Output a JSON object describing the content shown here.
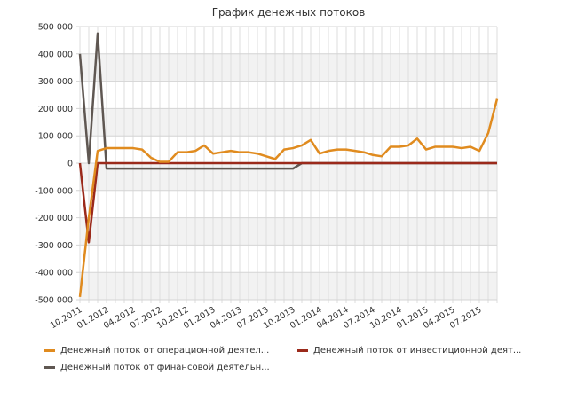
{
  "chart_data": {
    "type": "line",
    "title": "График денежных потоков",
    "xlabel": "",
    "ylabel": "",
    "ylim": [
      -500000,
      500000
    ],
    "y_ticks": [
      500000,
      400000,
      300000,
      200000,
      100000,
      0,
      -100000,
      -200000,
      -300000,
      -400000,
      -500000
    ],
    "y_tick_labels": [
      "500 000",
      "400 000",
      "300 000",
      "200 000",
      "100 000",
      "0",
      "-100 000",
      "-200 000",
      "-300 000",
      "-400 000",
      "-500 000"
    ],
    "grid": true,
    "legend_position": "bottom",
    "categories": [
      "10.2011",
      "11.2011",
      "12.2011",
      "01.2012",
      "02.2012",
      "03.2012",
      "04.2012",
      "05.2012",
      "06.2012",
      "07.2012",
      "08.2012",
      "09.2012",
      "10.2012",
      "11.2012",
      "12.2012",
      "01.2013",
      "02.2013",
      "03.2013",
      "04.2013",
      "05.2013",
      "06.2013",
      "07.2013",
      "08.2013",
      "09.2013",
      "10.2013",
      "11.2013",
      "12.2013",
      "01.2014",
      "02.2014",
      "03.2014",
      "04.2014",
      "05.2014",
      "06.2014",
      "07.2014",
      "08.2014",
      "09.2014",
      "10.2014",
      "11.2014",
      "12.2014",
      "01.2015",
      "02.2015",
      "03.2015",
      "04.2015",
      "05.2015",
      "06.2015",
      "07.2015",
      "08.2015",
      "09.2015"
    ],
    "x_tick_labels": [
      "10.2011",
      "01.2012",
      "04.2012",
      "07.2012",
      "10.2012",
      "01.2013",
      "04.2013",
      "07.2013",
      "10.2013",
      "01.2014",
      "04.2014",
      "07.2014",
      "10.2014",
      "01.2015",
      "04.2015",
      "07.2015"
    ],
    "series": [
      {
        "name": "Денежный поток от операционной деятел...",
        "color": "#E08B1F",
        "values": [
          -490000,
          -200000,
          45000,
          55000,
          55000,
          55000,
          55000,
          50000,
          20000,
          5000,
          5000,
          40000,
          40000,
          45000,
          65000,
          35000,
          40000,
          45000,
          40000,
          40000,
          35000,
          25000,
          15000,
          50000,
          55000,
          65000,
          85000,
          35000,
          45000,
          50000,
          50000,
          45000,
          40000,
          30000,
          25000,
          60000,
          60000,
          65000,
          90000,
          50000,
          60000,
          60000,
          60000,
          55000,
          60000,
          45000,
          110000,
          235000
        ]
      },
      {
        "name": "Денежный поток от инвестиционной деят...",
        "color": "#9B2A1B",
        "values": [
          0,
          -290000,
          0,
          0,
          0,
          0,
          0,
          0,
          0,
          0,
          0,
          0,
          0,
          0,
          0,
          0,
          0,
          0,
          0,
          0,
          0,
          0,
          0,
          0,
          0,
          0,
          0,
          0,
          0,
          0,
          0,
          0,
          0,
          0,
          0,
          0,
          0,
          0,
          0,
          0,
          0,
          0,
          0,
          0,
          0,
          0,
          0,
          0
        ]
      },
      {
        "name": "Денежный поток от финансовой деятельн...",
        "color": "#5F5752",
        "values": [
          400000,
          0,
          475000,
          -20000,
          -20000,
          -20000,
          -20000,
          -20000,
          -20000,
          -20000,
          -20000,
          -20000,
          -20000,
          -20000,
          -20000,
          -20000,
          -20000,
          -20000,
          -20000,
          -20000,
          -20000,
          -20000,
          -20000,
          -20000,
          -20000,
          0,
          0,
          0,
          0,
          0,
          0,
          0,
          0,
          0,
          0,
          0,
          0,
          0,
          0,
          0,
          0,
          0,
          0,
          0,
          0,
          0,
          0,
          0
        ]
      }
    ]
  }
}
